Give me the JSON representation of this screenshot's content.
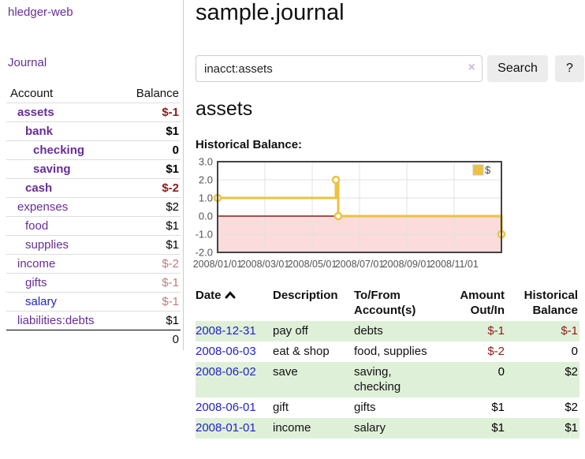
{
  "colors": {
    "link_purple": "#662d98",
    "link_blue": "#2222cc",
    "negative_red": "#8f1a1a",
    "negative_light_red": "#bd7b7b",
    "row_shade_green": "#dff0d8",
    "chart_gold": "#edc240",
    "chart_negative_region": "#fbdbdb",
    "chart_zero_line": "#8b1d1d",
    "chart_border": "#434343"
  },
  "sidebar": {
    "brand": "hledger-web",
    "nav_journal": "Journal",
    "accounts_table": {
      "headers": {
        "account": "Account",
        "balance": "Balance"
      },
      "rows": [
        {
          "account": "assets",
          "depth": 1,
          "bold": true,
          "link_color": "purple",
          "balance": "$-1",
          "balance_class": "neg"
        },
        {
          "account": "bank",
          "depth": 2,
          "bold": true,
          "link_color": "purple",
          "balance": "$1",
          "balance_class": "pos"
        },
        {
          "account": "checking",
          "depth": 3,
          "bold": true,
          "link_color": "purple",
          "balance": "0",
          "balance_class": "pos"
        },
        {
          "account": "saving",
          "depth": 3,
          "bold": true,
          "link_color": "purple",
          "balance": "$1",
          "balance_class": "pos"
        },
        {
          "account": "cash",
          "depth": 2,
          "bold": true,
          "link_color": "purple",
          "balance": "$-2",
          "balance_class": "neg"
        },
        {
          "account": "expenses",
          "depth": 1,
          "bold": false,
          "link_color": "purple",
          "balance": "$2",
          "balance_class": "pos"
        },
        {
          "account": "food",
          "depth": 2,
          "bold": false,
          "link_color": "purple",
          "balance": "$1",
          "balance_class": "pos"
        },
        {
          "account": "supplies",
          "depth": 2,
          "bold": false,
          "link_color": "purple",
          "balance": "$1",
          "balance_class": "pos"
        },
        {
          "account": "income",
          "depth": 1,
          "bold": false,
          "link_color": "purple",
          "balance": "$-2",
          "balance_class": "neg-light"
        },
        {
          "account": "gifts",
          "depth": 2,
          "bold": false,
          "link_color": "purple",
          "balance": "$-1",
          "balance_class": "neg-light"
        },
        {
          "account": "salary",
          "depth": 2,
          "bold": false,
          "link_color": "blue",
          "balance": "$-1",
          "balance_class": "neg-light"
        },
        {
          "account": "liabilities:debts",
          "depth": 1,
          "bold": false,
          "link_color": "purple",
          "balance": "$1",
          "balance_class": "pos"
        }
      ],
      "total": "0"
    }
  },
  "main": {
    "title": "sample.journal",
    "search": {
      "value": "inacct:assets",
      "clear_icon": "×",
      "search_button": "Search",
      "help_button": "?"
    },
    "account_heading": "assets",
    "chart_heading": "Historical Balance:",
    "register_table": {
      "headers": [
        {
          "lines": [
            "Date"
          ],
          "sort": "asc",
          "align": "left"
        },
        {
          "lines": [
            "Description"
          ],
          "align": "left"
        },
        {
          "lines": [
            "To/From",
            "Account(s)"
          ],
          "align": "left"
        },
        {
          "lines": [
            "Amount",
            "Out/In"
          ],
          "align": "right"
        },
        {
          "lines": [
            "Historical",
            "Balance"
          ],
          "align": "right"
        }
      ],
      "rows": [
        {
          "date": "2008-12-31",
          "description": "pay off",
          "accounts": [
            "debts"
          ],
          "amount": "$-1",
          "amount_class": "neg",
          "balance": "$-1",
          "balance_class": "neg",
          "shaded": true
        },
        {
          "date": "2008-06-03",
          "description": "eat & shop",
          "accounts": [
            "food, supplies"
          ],
          "amount": "$-2",
          "amount_class": "neg",
          "balance": "0",
          "balance_class": "pos",
          "shaded": false
        },
        {
          "date": "2008-06-02",
          "description": "save",
          "accounts": [
            "saving,",
            "checking"
          ],
          "amount": "0",
          "amount_class": "pos",
          "balance": "$2",
          "balance_class": "pos",
          "shaded": true
        },
        {
          "date": "2008-06-01",
          "description": "gift",
          "accounts": [
            "gifts"
          ],
          "amount": "$1",
          "amount_class": "pos",
          "balance": "$2",
          "balance_class": "pos",
          "shaded": false
        },
        {
          "date": "2008-01-01",
          "description": "income",
          "accounts": [
            "salary"
          ],
          "amount": "$1",
          "amount_class": "pos",
          "balance": "$1",
          "balance_class": "pos",
          "shaded": true
        }
      ]
    }
  },
  "chart_data": {
    "type": "line",
    "step": true,
    "title": "Historical Balance:",
    "series": [
      {
        "name": "$",
        "color": "#edc240",
        "points": [
          {
            "date": "2008-01-01",
            "x": 0,
            "y": 1
          },
          {
            "date": "2008-06-01",
            "x": 5,
            "y": 2
          },
          {
            "date": "2008-06-03",
            "x": 5.1,
            "y": 0
          },
          {
            "date": "2008-12-31",
            "x": 12,
            "y": -1
          }
        ]
      }
    ],
    "xlim": [
      0,
      12
    ],
    "ylim": [
      -2,
      3
    ],
    "yticks": [
      {
        "v": 3,
        "label": "3.0"
      },
      {
        "v": 2,
        "label": "2.0"
      },
      {
        "v": 1,
        "label": "1.0"
      },
      {
        "v": 0,
        "label": "0.0"
      },
      {
        "v": -1,
        "label": "-1.0"
      },
      {
        "v": -2,
        "label": "-2.0"
      }
    ],
    "xticks": [
      {
        "v": 0,
        "label": "2008/01/01"
      },
      {
        "v": 2,
        "label": "2008/03/01"
      },
      {
        "v": 4,
        "label": "2008/05/01"
      },
      {
        "v": 6,
        "label": "2008/07/01"
      },
      {
        "v": 8,
        "label": "2008/09/01"
      },
      {
        "v": 10,
        "label": "2008/11/01"
      }
    ],
    "grid": true,
    "legend": {
      "label": "$",
      "position": "top-right"
    },
    "negative_region_color": "#fbdbdb",
    "zero_line_color": "#8b1d1d"
  }
}
